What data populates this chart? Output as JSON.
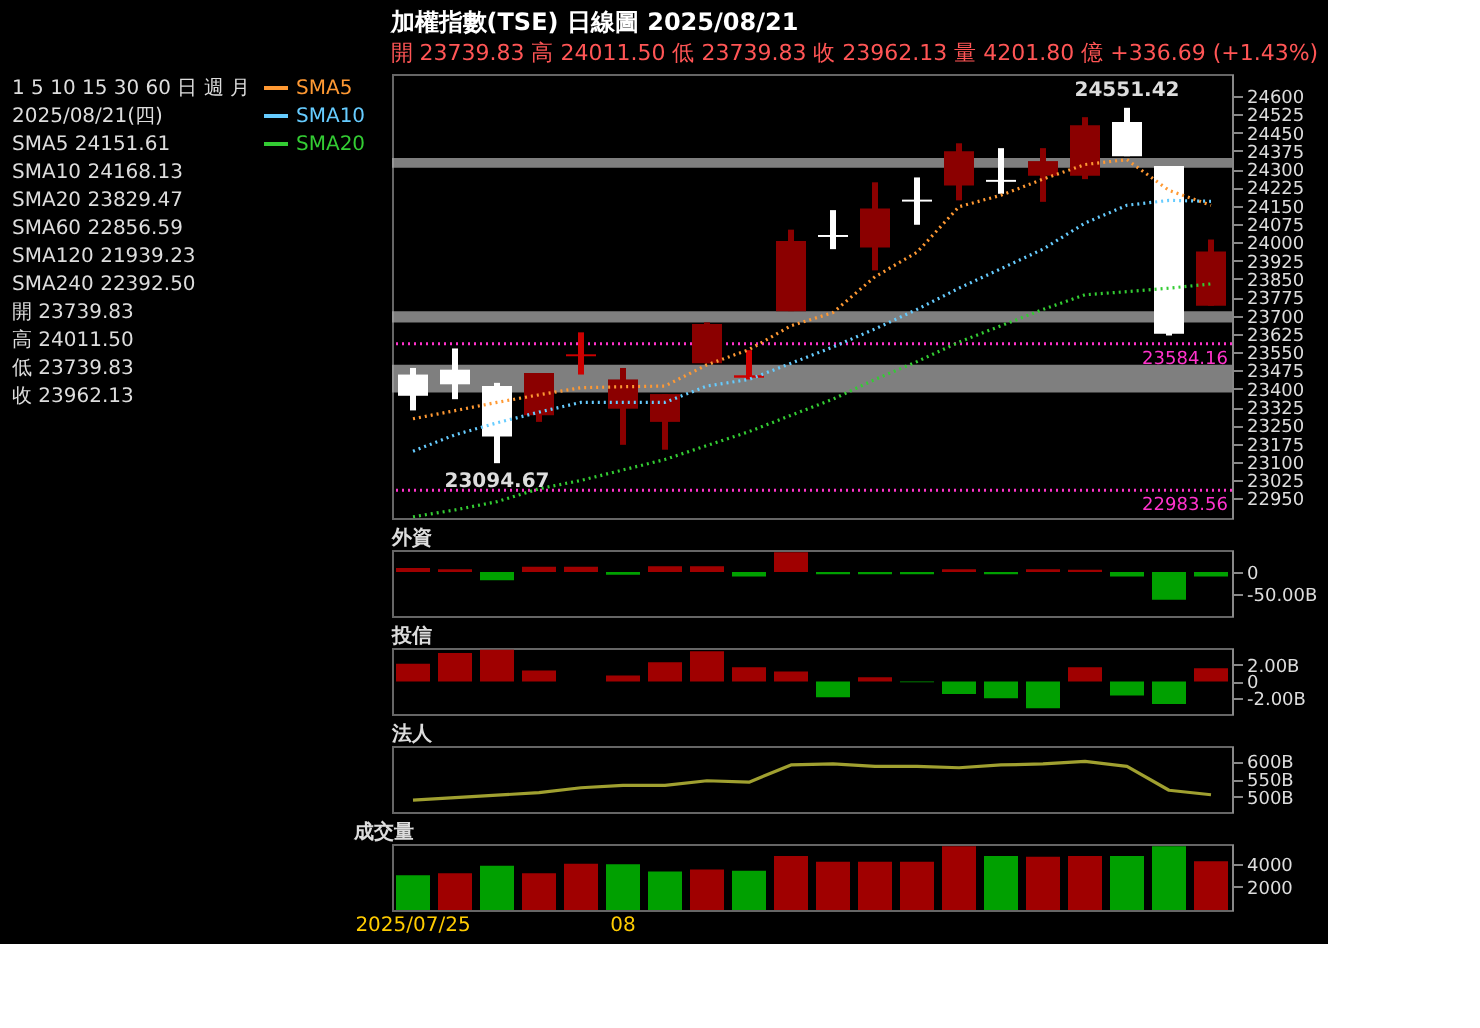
{
  "chart_data": [
    {
      "type": "candlestick",
      "title": "加權指數(TSE) 日線圖 2025/08/21",
      "subtitle": "開 23739.83 高 24011.50 低 23739.83 收 23962.13 量 4201.80 億 +336.69 (+1.43%)",
      "categories": [
        "2025/07/25",
        null,
        null,
        null,
        null,
        "08",
        null,
        null,
        null,
        null,
        null,
        null,
        null,
        null,
        null,
        null,
        null,
        null,
        null,
        null
      ],
      "ohlc": [
        [
          23458,
          23485,
          23311,
          23371
        ],
        [
          23478,
          23565,
          23357,
          23418
        ],
        [
          23411,
          23424,
          23094.67,
          23204
        ],
        [
          23291,
          23464,
          23264,
          23464
        ],
        [
          23533,
          23631,
          23458,
          23541
        ],
        [
          23318,
          23485,
          23170,
          23438
        ],
        [
          23264,
          23378,
          23150,
          23378
        ],
        [
          23504,
          23672,
          23504,
          23665
        ],
        [
          23445,
          23558,
          23438,
          23455
        ],
        [
          23718,
          24052,
          23718,
          24005
        ],
        [
          24030,
          24132,
          23972,
          24022
        ],
        [
          23979,
          24246,
          23885,
          24139
        ],
        [
          24175,
          24266,
          24072,
          24167
        ],
        [
          24233,
          24406,
          24172,
          24373
        ],
        [
          24256,
          24386,
          24199,
          24248
        ],
        [
          24273,
          24386,
          24166,
          24333
        ],
        [
          24273,
          24513,
          24259,
          24480
        ],
        [
          24493,
          24551.42,
          24353,
          24353
        ],
        [
          24313,
          24313,
          23618,
          23625.44
        ],
        [
          23739.83,
          24011.5,
          23739.83,
          23962.13
        ]
      ],
      "colors": [
        "#ffffff",
        "#ffffff",
        "#ffffff",
        "#8b0000",
        "#cc0000",
        "#8b0000",
        "#8b0000",
        "#8b0000",
        "#cc0000",
        "#8b0000",
        "#ffffff",
        "#8b0000",
        "#ffffff",
        "#8b0000",
        "#ffffff",
        "#8b0000",
        "#8b0000",
        "#ffffff",
        "#ffffff",
        "#8b0000"
      ],
      "series": [
        {
          "name": "SMA5",
          "type": "line",
          "color": "#ff9933",
          "values": [
            23277,
            23310,
            23344,
            23375,
            23404,
            23408,
            23411,
            23498,
            23560,
            23658,
            23712,
            23859,
            23959,
            24146,
            24193,
            24259,
            24319,
            24339,
            24213,
            24151.61
          ]
        },
        {
          "name": "SMA10",
          "type": "line",
          "color": "#66ccff",
          "values": [
            23144,
            23211,
            23260,
            23304,
            23344,
            23344,
            23344,
            23411,
            23438,
            23504,
            23571,
            23645,
            23725,
            23812,
            23892,
            23972,
            24079,
            24152,
            24172,
            24168.13
          ]
        },
        {
          "name": "SMA20",
          "type": "line",
          "color": "#33cc33",
          "values": [
            22875,
            22903,
            22937,
            22990,
            23024,
            23067,
            23110,
            23167,
            23224,
            23291,
            23357,
            23438,
            23511,
            23591,
            23658,
            23725,
            23785,
            23798,
            23812,
            23829.47
          ]
        }
      ],
      "line_style": "dotted",
      "legend": "left",
      "tick_labels": "y",
      "ylim": [
        22870,
        24690
      ],
      "yticks": [
        22950,
        23025,
        23100,
        23175,
        23250,
        23325,
        23400,
        23475,
        23550,
        23625,
        23700,
        23775,
        23850,
        23925,
        24000,
        24075,
        24150,
        24225,
        24300,
        24375,
        24450,
        24525,
        24600
      ],
      "ref_lines": [
        {
          "axis": "y",
          "value": 23584.16,
          "label": "23584.16",
          "color": "#ff33cc",
          "line_style": "dotted"
        },
        {
          "axis": "y",
          "value": 22983.56,
          "label": "22983.56",
          "color": "#ff33cc",
          "line_style": "dotted"
        }
      ],
      "bands": [
        {
          "axis": "y",
          "from": 24306,
          "to": 24346,
          "color": "#aaaaaa"
        },
        {
          "axis": "y",
          "from": 23671,
          "to": 23718,
          "color": "#aaaaaa"
        },
        {
          "axis": "y",
          "from": 23384,
          "to": 23498,
          "color": "#aaaaaa"
        }
      ],
      "annotations": [
        {
          "text": "23094.67",
          "y": 23094.67
        },
        {
          "text": "24551.42",
          "y": 24551.42
        },
        "1 5 10 15 30 60 日 週 月",
        "2025/08/21(四)",
        "SMA5 24151.61",
        "SMA10 24168.13",
        "SMA20 23829.47",
        "SMA60 22856.59",
        "SMA120 21939.23",
        "SMA240 22392.50",
        "開 23739.83",
        "高 24011.50",
        "低 23739.83",
        "收 23962.13"
      ]
    },
    {
      "type": "bar",
      "title": "外資",
      "categories": [
        null,
        null,
        null,
        null,
        null,
        null,
        null,
        null,
        null,
        null,
        null,
        null,
        null,
        null,
        null,
        null,
        null,
        null,
        null,
        null
      ],
      "values": [
        9,
        6,
        -19,
        12,
        12,
        -6,
        13,
        13,
        -10,
        45,
        -5,
        -5,
        -5,
        6,
        -5,
        6,
        5,
        -10,
        -63,
        -10.1
      ],
      "colors": [
        "#a00000",
        "#a00000",
        "#00a000",
        "#a00000",
        "#a00000",
        "#00a000",
        "#a00000",
        "#a00000",
        "#00a000",
        "#a00000",
        "#00a000",
        "#00a000",
        "#00a000",
        "#a00000",
        "#00a000",
        "#a00000",
        "#a00000",
        "#00a000",
        "#00a000",
        "#00a000"
      ],
      "ylim": [
        -100,
        50
      ],
      "yticks": [
        {
          "value": 0,
          "label": "0"
        },
        {
          "value": -50,
          "label": "-50.00B"
        }
      ],
      "tick_labels": "y"
    },
    {
      "type": "bar",
      "title": "投信",
      "categories": [
        null,
        null,
        null,
        null,
        null,
        null,
        null,
        null,
        null,
        null,
        null,
        null,
        null,
        null,
        null,
        null,
        null,
        null,
        null,
        null
      ],
      "values": [
        2.1,
        3.4,
        3.8,
        1.3,
        0,
        0.7,
        2.3,
        3.6,
        1.7,
        1.2,
        -1.9,
        0.5,
        -0.1,
        -1.5,
        -2.0,
        -3.2,
        1.7,
        -1.7,
        -2.7,
        1.59
      ],
      "colors": [
        "#a00000",
        "#a00000",
        "#a00000",
        "#a00000",
        "#a00000",
        "#a00000",
        "#a00000",
        "#a00000",
        "#a00000",
        "#a00000",
        "#00a000",
        "#a00000",
        "#00a000",
        "#00a000",
        "#00a000",
        "#00a000",
        "#a00000",
        "#00a000",
        "#00a000",
        "#a00000"
      ],
      "ylim": [
        -3.9,
        4
      ],
      "yticks": [
        {
          "value": 2,
          "label": "2.00B"
        },
        {
          "value": 0,
          "label": "0"
        },
        {
          "value": -2,
          "label": "-2.00B"
        }
      ],
      "tick_labels": "y"
    },
    {
      "type": "line",
      "title": "法人",
      "categories": [
        null,
        null,
        null,
        null,
        null,
        null,
        null,
        null,
        null,
        null,
        null,
        null,
        null,
        null,
        null,
        null,
        null,
        null,
        null,
        null
      ],
      "series": [
        {
          "color": "#a0a030",
          "values": [
            490,
            497,
            504,
            511,
            525,
            532,
            532,
            545,
            541,
            590,
            593,
            586,
            586,
            582,
            590,
            593,
            600,
            586,
            518,
            505.2
          ]
        }
      ],
      "ylim": [
        456,
        644
      ],
      "yticks": [
        {
          "value": 600,
          "label": "600B"
        },
        {
          "value": 550,
          "label": "550B"
        },
        {
          "value": 500,
          "label": "500B"
        }
      ],
      "tick_labels": "y"
    },
    {
      "type": "bar",
      "title": "成交量",
      "categories": [
        "2025/07/25",
        null,
        null,
        null,
        null,
        "08",
        null,
        null,
        null,
        null,
        null,
        null,
        null,
        null,
        null,
        null,
        null,
        null,
        null,
        null
      ],
      "values": [
        3000,
        3170,
        3830,
        3170,
        4000,
        3950,
        3330,
        3500,
        3400,
        4670,
        4170,
        4170,
        4170,
        5500,
        4670,
        4600,
        4670,
        4670,
        5500,
        4201.8
      ],
      "colors": [
        "#00a000",
        "#a00000",
        "#00a000",
        "#a00000",
        "#a00000",
        "#00a000",
        "#00a000",
        "#a00000",
        "#00a000",
        "#a00000",
        "#a00000",
        "#a00000",
        "#a00000",
        "#a00000",
        "#00a000",
        "#a00000",
        "#a00000",
        "#00a000",
        "#00a000",
        "#a00000"
      ],
      "ylim": [
        0,
        5700
      ],
      "yticks": [
        4000,
        2000
      ]
    }
  ]
}
